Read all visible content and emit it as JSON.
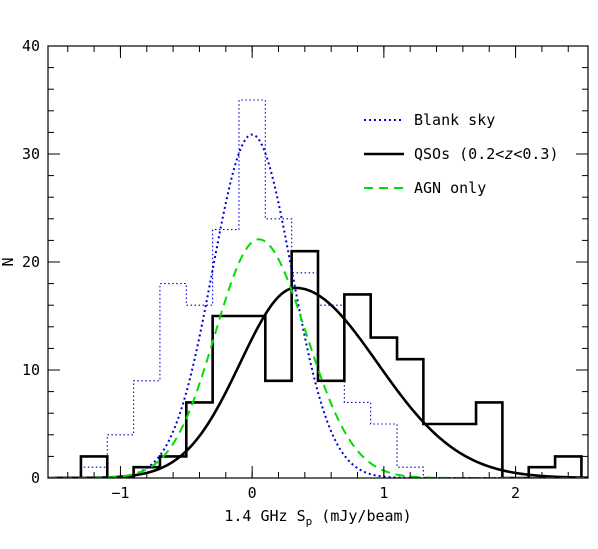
{
  "chart_data": {
    "type": "line",
    "xlabel": "1.4 GHz S",
    "xlabel_subscript": "p",
    "xlabel_unit": " (mJy/beam)",
    "ylabel": "N",
    "xlim": [
      -1.55,
      2.55
    ],
    "ylim": [
      0,
      40
    ],
    "xticks": [
      -1,
      0,
      1,
      2
    ],
    "yticks": [
      0,
      10,
      20,
      30,
      40
    ],
    "grid": false,
    "legend_position": "top-right",
    "legend": [
      {
        "label": "Blank sky",
        "style": "dotted",
        "color": "#0000cc"
      },
      {
        "label": "QSOs (0.2<",
        "label_italic": "z",
        "label_end": "<0.3)",
        "style": "solid",
        "color": "#000000"
      },
      {
        "label": "AGN only",
        "style": "dashed",
        "color": "#00dd00"
      }
    ],
    "histograms": [
      {
        "name": "Blank sky",
        "style": "dotted",
        "color": "#0000cc",
        "edges": [
          -1.5,
          -1.3,
          -1.1,
          -0.9,
          -0.7,
          -0.5,
          -0.3,
          -0.1,
          0.1,
          0.3,
          0.5,
          0.7,
          0.9,
          1.1,
          1.3,
          1.5
        ],
        "counts": [
          0,
          1,
          4,
          9,
          18,
          16,
          23,
          35,
          24,
          19,
          16,
          7,
          5,
          1,
          0
        ]
      },
      {
        "name": "QSOs (0.2<z<0.3)",
        "style": "solid",
        "color": "#000000",
        "edges": [
          -1.5,
          -1.3,
          -1.1,
          -0.9,
          -0.7,
          -0.5,
          -0.3,
          -0.1,
          0.1,
          0.3,
          0.5,
          0.7,
          0.9,
          1.1,
          1.3,
          1.5,
          1.7,
          1.9,
          2.1,
          2.3,
          2.5
        ],
        "counts": [
          0,
          2,
          0,
          1,
          2,
          7,
          15,
          15,
          9,
          21,
          9,
          17,
          13,
          11,
          5,
          5,
          7,
          0,
          1,
          2
        ]
      }
    ],
    "curves": [
      {
        "name": "Blank sky",
        "style": "dotted",
        "color": "#0000cc",
        "model": "gaussian",
        "amplitude": 31.8,
        "mean": 0.0,
        "sigma": 0.3
      },
      {
        "name": "QSOs (0.2<z<0.3)",
        "style": "solid",
        "color": "#000000",
        "model": "skewed",
        "amplitude": 17.6,
        "mean": 0.33,
        "sigma_left": 0.42,
        "sigma_right": 0.62
      },
      {
        "name": "AGN only",
        "style": "dashed",
        "color": "#00dd00",
        "model": "skewed",
        "amplitude": 22.1,
        "mean": 0.05,
        "sigma_left": 0.33,
        "sigma_right": 0.36
      }
    ]
  }
}
